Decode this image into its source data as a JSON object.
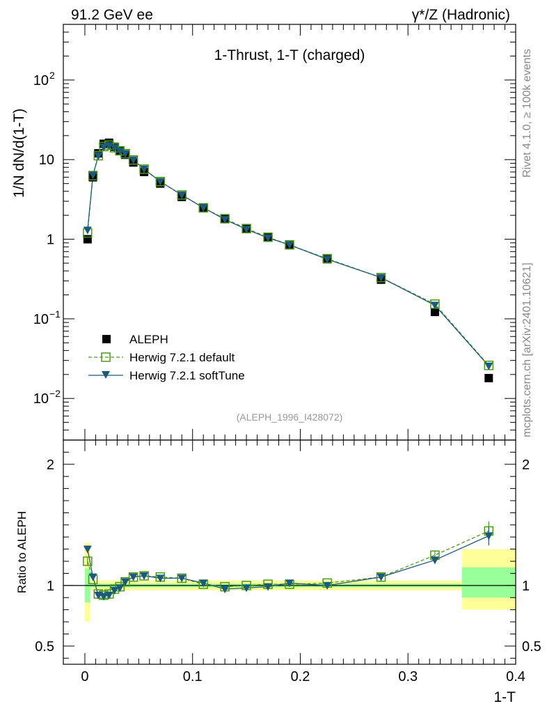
{
  "header": {
    "left": "91.2 GeV ee",
    "right": "γ*/Z (Hadronic)"
  },
  "side_labels": {
    "rivet": "Rivet 4.1.0, ≥ 100k events",
    "mcplots": "mcplots.cern.ch [arXiv:2401.10621]"
  },
  "colors": {
    "aleph": "#000000",
    "default": "#4a9a1a",
    "softtune": "#1b5a78",
    "band_outer": "#ffff99",
    "band_inner": "#99ff99"
  },
  "chart_data": [
    {
      "type": "line",
      "panel": "main",
      "title": "1-Thrust, 1-T (charged)",
      "ylabel": "1/N  dN/d(1-T)",
      "yscale": "log",
      "ylim": [
        0.003,
        500
      ],
      "xlim": [
        -0.02,
        0.4
      ],
      "ytick_labels": [
        {
          "value": 0.01,
          "base": "10",
          "exp": "−2"
        },
        {
          "value": 0.1,
          "base": "10",
          "exp": "−1"
        },
        {
          "value": 1,
          "base": "1",
          "exp": ""
        },
        {
          "value": 10,
          "base": "10",
          "exp": ""
        },
        {
          "value": 100,
          "base": "10",
          "exp": "2"
        }
      ],
      "watermark": "(ALEPH_1996_I428072)",
      "legend_position": "bottom-left",
      "legend": [
        "ALEPH",
        "Herwig 7.2.1 default",
        "Herwig 7.2.1 softTune"
      ],
      "x": [
        0.0025,
        0.0075,
        0.0125,
        0.0175,
        0.0225,
        0.0275,
        0.0325,
        0.0375,
        0.045,
        0.055,
        0.07,
        0.09,
        0.11,
        0.13,
        0.15,
        0.17,
        0.19,
        0.225,
        0.275,
        0.325,
        0.375
      ],
      "series": [
        {
          "name": "ALEPH",
          "values": [
            1.0,
            6.0,
            12.0,
            15.8,
            16.3,
            14.5,
            13.0,
            11.5,
            9.2,
            7.0,
            5.0,
            3.4,
            2.45,
            1.82,
            1.36,
            1.05,
            0.84,
            0.56,
            0.31,
            0.122,
            0.018
          ]
        },
        {
          "name": "Herwig 7.2.1 default",
          "values": [
            1.2,
            6.3,
            11.2,
            14.6,
            15.2,
            14.1,
            12.9,
            11.9,
            9.9,
            7.6,
            5.3,
            3.6,
            2.48,
            1.81,
            1.36,
            1.06,
            0.85,
            0.57,
            0.33,
            0.153,
            0.026
          ]
        },
        {
          "name": "Herwig 7.2.1 softTune",
          "values": [
            1.3,
            6.4,
            11.1,
            14.4,
            15.0,
            14.0,
            12.8,
            11.9,
            9.9,
            7.6,
            5.3,
            3.6,
            2.49,
            1.77,
            1.33,
            1.04,
            0.85,
            0.56,
            0.33,
            0.148,
            0.0255
          ]
        }
      ]
    },
    {
      "type": "line",
      "panel": "ratio",
      "ylabel": "Ratio to ALEPH",
      "xlabel": "1-T",
      "ylim": [
        0.35,
        2.2
      ],
      "xlim": [
        -0.02,
        0.4
      ],
      "yticks": [
        0.5,
        1,
        2
      ],
      "ytick_labels": [
        "0.5",
        "1",
        "2"
      ],
      "xticks": [
        0,
        0.1,
        0.2,
        0.3,
        0.4
      ],
      "xtick_labels": [
        "0",
        "0.1",
        "0.2",
        "0.3",
        "0.4"
      ],
      "x": [
        0.0025,
        0.0075,
        0.0125,
        0.0175,
        0.0225,
        0.0275,
        0.0325,
        0.0375,
        0.045,
        0.055,
        0.07,
        0.09,
        0.11,
        0.13,
        0.15,
        0.17,
        0.19,
        0.225,
        0.275,
        0.325,
        0.375
      ],
      "series": [
        {
          "name": "Herwig 7.2.1 default",
          "values": [
            1.2,
            1.05,
            0.93,
            0.92,
            0.93,
            0.97,
            0.99,
            1.03,
            1.07,
            1.08,
            1.07,
            1.06,
            1.01,
            0.99,
            1.0,
            1.01,
            1.01,
            1.02,
            1.07,
            1.25,
            1.45
          ],
          "errors": [
            0.03,
            0.01,
            0.01,
            0.01,
            0.01,
            0.01,
            0.01,
            0.01,
            0.01,
            0.01,
            0.01,
            0.01,
            0.01,
            0.01,
            0.01,
            0.01,
            0.01,
            0.01,
            0.01,
            0.03,
            0.08
          ]
        },
        {
          "name": "Herwig 7.2.1 softTune",
          "values": [
            1.3,
            1.07,
            0.92,
            0.91,
            0.92,
            0.96,
            0.98,
            1.03,
            1.07,
            1.08,
            1.06,
            1.06,
            1.02,
            0.97,
            0.98,
            0.99,
            1.02,
            1.0,
            1.07,
            1.21,
            1.41
          ],
          "errors": [
            0.03,
            0.01,
            0.01,
            0.01,
            0.01,
            0.01,
            0.01,
            0.01,
            0.01,
            0.01,
            0.01,
            0.01,
            0.01,
            0.01,
            0.01,
            0.01,
            0.01,
            0.01,
            0.01,
            0.03,
            0.08
          ]
        }
      ],
      "bands": [
        {
          "x0": 0.0,
          "x1": 0.005,
          "outer": [
            0.7,
            1.35
          ],
          "inner": [
            0.86,
            1.14
          ]
        },
        {
          "x0": 0.005,
          "x1": 0.35,
          "outer": [
            0.96,
            1.04
          ],
          "inner": [
            0.985,
            1.015
          ]
        },
        {
          "x0": 0.35,
          "x1": 0.4,
          "outer": [
            0.8,
            1.3
          ],
          "inner": [
            0.9,
            1.15
          ]
        }
      ]
    }
  ]
}
